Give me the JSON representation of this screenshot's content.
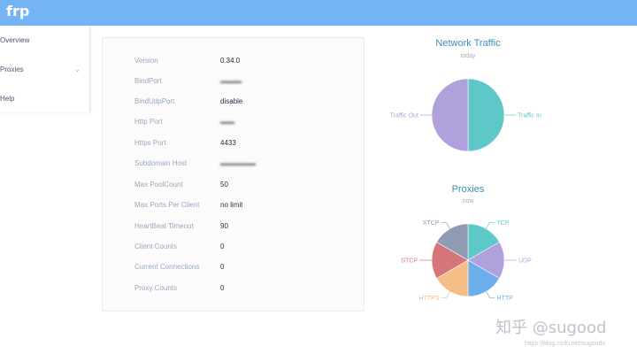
{
  "header": {
    "brand": "frp"
  },
  "sidebar": {
    "items": [
      {
        "label": "Overview"
      },
      {
        "label": "Proxies"
      },
      {
        "label": "Help"
      }
    ]
  },
  "info": {
    "rows": [
      {
        "label": "Version",
        "value": "0.34.0"
      },
      {
        "label": "BindPort",
        "value": ""
      },
      {
        "label": "BindUdpPort",
        "value": "disable"
      },
      {
        "label": "Http Port",
        "value": ""
      },
      {
        "label": "Https Port",
        "value": "4433"
      },
      {
        "label": "Subdomain Host",
        "value": ""
      },
      {
        "label": "Max PoolCount",
        "value": "50"
      },
      {
        "label": "Max Ports Per Client",
        "value": "no limit"
      },
      {
        "label": "HeartBeat Timeout",
        "value": "90"
      },
      {
        "label": "Client Counts",
        "value": "0"
      },
      {
        "label": "Current Connections",
        "value": "0"
      },
      {
        "label": "Proxy Counts",
        "value": "0"
      }
    ]
  },
  "traffic_chart": {
    "title": "Network Traffic",
    "subtitle": "today",
    "chart_data": {
      "type": "pie",
      "categories": [
        "Traffic In",
        "Traffic Out"
      ],
      "values": [
        50,
        50
      ],
      "colors": [
        "#5ec8c8",
        "#b0a0db"
      ]
    }
  },
  "proxies_chart": {
    "title": "Proxies",
    "subtitle": "now",
    "chart_data": {
      "type": "pie",
      "categories": [
        "TCP",
        "UDP",
        "HTTP",
        "HTTPS",
        "STCP",
        "XTCP"
      ],
      "values": [
        1,
        1,
        1,
        1,
        1,
        1
      ],
      "colors": [
        "#5ec8c8",
        "#b0a0db",
        "#6eaeec",
        "#f5bd86",
        "#d4767a",
        "#8e9bb3"
      ]
    }
  },
  "watermark": {
    "text": "知乎 @sugood",
    "url": "https://blog.csdn.net/sugoods"
  }
}
